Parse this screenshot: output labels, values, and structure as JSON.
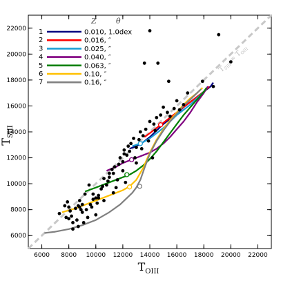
{
  "chart_data": {
    "type": "line",
    "xlabel": "T",
    "xlabel_sub": "OIII",
    "ylabel": "T",
    "ylabel_sub": "SIII",
    "xlim": [
      5000,
      23000
    ],
    "ylim": [
      5000,
      23000
    ],
    "ticks": [
      6000,
      8000,
      10000,
      12000,
      14000,
      16000,
      18000,
      20000,
      22000
    ],
    "tick_labels": [
      "6000",
      "8000",
      "10000",
      "12000",
      "14000",
      "16000",
      "18000",
      "20000",
      "22000"
    ],
    "diagonal": {
      "label_main": "T",
      "label_sub1": "SIII",
      "label_eq": " = T",
      "label_sub2": "OIII",
      "color": "#c8c8c8"
    },
    "legend_header": {
      "z": "Z",
      "theta": "θ"
    },
    "series": [
      {
        "id": "1",
        "label": "0.010, 1.0dex",
        "color": "#000080",
        "x": [
          12500,
          13000,
          13500,
          14000,
          14500,
          15000,
          15500,
          16000,
          16500,
          17000,
          17500,
          18000,
          18500,
          18700
        ],
        "y": [
          12700,
          12900,
          13200,
          13600,
          14100,
          14600,
          15000,
          15400,
          15900,
          16300,
          16700,
          17100,
          17500,
          17800
        ],
        "marker": null
      },
      {
        "id": "2",
        "label": "0.016, ″",
        "color": "#ff0000",
        "x": [
          13600,
          14000,
          14500,
          15000,
          15500,
          16000,
          16500,
          17000,
          17500,
          18000,
          18400
        ],
        "y": [
          13600,
          13900,
          14300,
          14700,
          15100,
          15500,
          15900,
          16300,
          16700,
          17100,
          17500
        ],
        "marker": [
          14800,
          14550
        ]
      },
      {
        "id": "3",
        "label": "0.025, ″",
        "color": "#1e9fd6",
        "x": [
          12700,
          13000,
          13500,
          14000,
          14500,
          15000,
          15500,
          16000,
          16500,
          17000,
          17500,
          18000,
          18300
        ],
        "y": [
          12900,
          13000,
          13200,
          13500,
          13900,
          14300,
          14800,
          15300,
          15700,
          16100,
          16600,
          17100,
          17500
        ],
        "marker": [
          13300,
          13100
        ]
      },
      {
        "id": "4",
        "label": "0.040, ″",
        "color": "#800080",
        "x": [
          10800,
          11500,
          12000,
          12500,
          13000,
          13500,
          14000,
          14500,
          15000,
          15500,
          16000,
          16500,
          17000,
          17500,
          18000,
          18300
        ],
        "y": [
          11000,
          11300,
          11600,
          11800,
          12000,
          12200,
          12400,
          12700,
          13100,
          13600,
          14200,
          14800,
          15500,
          16300,
          17000,
          17500
        ],
        "marker": [
          12650,
          11850
        ]
      },
      {
        "id": "5",
        "label": "0.063, ″",
        "color": "#008000",
        "x": [
          9200,
          10000,
          11000,
          12000,
          12500,
          13000,
          13500,
          14000,
          14500,
          15000,
          15500,
          16000,
          16500,
          17000,
          17500,
          18000,
          18200
        ],
        "y": [
          9400,
          9700,
          10100,
          10500,
          10700,
          11000,
          11400,
          11900,
          12500,
          13200,
          13900,
          14600,
          15300,
          15900,
          16500,
          17100,
          17400
        ],
        "marker": [
          12300,
          10700
        ]
      },
      {
        "id": "6",
        "label": "0.10, ″",
        "color": "#ffc000",
        "x": [
          7500,
          8500,
          9500,
          10500,
          11500,
          12000,
          12500,
          13000,
          13500,
          14000,
          14500,
          15000,
          15500,
          16000,
          16500,
          17000,
          17500,
          17900
        ],
        "y": [
          7800,
          8100,
          8500,
          8900,
          9300,
          9500,
          9800,
          10300,
          11200,
          12400,
          13400,
          14200,
          14900,
          15500,
          16100,
          16600,
          17000,
          17400
        ],
        "marker": [
          12500,
          9750
        ]
      },
      {
        "id": "7",
        "label": "0.16, ″",
        "color": "#808080",
        "x": [
          6200,
          7000,
          8000,
          9000,
          10000,
          11000,
          11800,
          12300,
          12700,
          13000,
          13300,
          13600,
          14000,
          14500,
          15000,
          15500,
          16000,
          16500,
          17000,
          17500,
          17800
        ],
        "y": [
          6200,
          6300,
          6500,
          6800,
          7200,
          7800,
          8400,
          8900,
          9300,
          9700,
          10300,
          11200,
          12300,
          13300,
          14100,
          14800,
          15400,
          16000,
          16500,
          17000,
          17300
        ],
        "marker": [
          13250,
          9800
        ]
      }
    ],
    "points": {
      "x": [
        7300,
        7700,
        7900,
        8000,
        8100,
        8200,
        8300,
        8500,
        8600,
        8700,
        8800,
        9000,
        9100,
        9200,
        9300,
        9500,
        9600,
        9800,
        10000,
        10100,
        10200,
        10400,
        10600,
        10800,
        11000,
        11200,
        11400,
        11500,
        11600,
        11800,
        12000,
        12100,
        12300,
        12400,
        12600,
        12800,
        13000,
        13200,
        13300,
        13500,
        13700,
        14000,
        14300,
        14500,
        14800,
        15000,
        15300,
        15500,
        15800,
        16000,
        16200,
        16500,
        8000,
        8300,
        8700,
        9000,
        9400,
        9800,
        10200,
        10500,
        10900,
        11300,
        11700,
        12100,
        12500,
        12900,
        13400,
        13900,
        14400,
        7800,
        8900,
        9700,
        10600,
        11300,
        12200,
        13600,
        14600,
        15400,
        16800,
        17900,
        18700,
        19100,
        20000,
        8800,
        10000,
        11000,
        12000,
        13000,
        14200
      ],
      "y": [
        7700,
        8300,
        8600,
        8200,
        7900,
        7500,
        6500,
        8100,
        7200,
        8300,
        8700,
        8400,
        7000,
        9200,
        8000,
        9900,
        8400,
        8800,
        7600,
        8500,
        9100,
        9600,
        10400,
        9900,
        10800,
        11100,
        11300,
        9700,
        10300,
        12000,
        11700,
        12600,
        12200,
        12900,
        13100,
        13500,
        12800,
        13400,
        14000,
        13700,
        14200,
        14800,
        14600,
        15100,
        15300,
        15900,
        15500,
        15200,
        15800,
        16400,
        15700,
        16100,
        7300,
        7000,
        6700,
        7800,
        7400,
        9200,
        8900,
        9800,
        10200,
        10800,
        11500,
        12300,
        12500,
        12000,
        12700,
        13300,
        14100,
        7400,
        8000,
        8200,
        8700,
        9300,
        10100,
        19300,
        19300,
        17900,
        17000,
        17900,
        17500,
        21500,
        19400,
        8200,
        8900,
        10500,
        11000,
        11600,
        12000
      ]
    },
    "highlight_point": [
      14000,
      21800
    ]
  }
}
